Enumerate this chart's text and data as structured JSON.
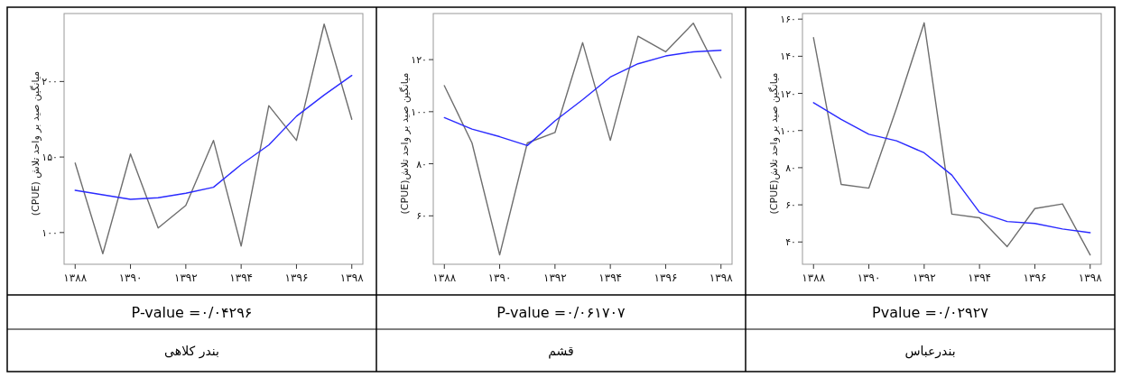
{
  "chart_data": [
    {
      "type": "line",
      "title": "بندر کلاهی",
      "ylabel": "میانگین صید بر واحد تلاش (CPUE)",
      "annotations": [
        "P-value =۰/۰۴۲۹۶"
      ],
      "x": [
        1388,
        1389,
        1390,
        1391,
        1392,
        1393,
        1394,
        1395,
        1396,
        1397,
        1398
      ],
      "series": [
        {
          "color": "#6e6e6e",
          "values": [
            146,
            86,
            152,
            103,
            118,
            161,
            91,
            184,
            161,
            238,
            175
          ]
        },
        {
          "color": "#2a2aff",
          "values": [
            128,
            125,
            122,
            123,
            126,
            130,
            145,
            158,
            177,
            191,
            204
          ]
        }
      ],
      "xlim": [
        1387.6,
        1398.4
      ],
      "xticks": [
        {
          "value": 1388,
          "label": "۱۳۸۸"
        },
        {
          "value": 1390,
          "label": "۱۳۹۰"
        },
        {
          "value": 1392,
          "label": "۱۳۹۲"
        },
        {
          "value": 1394,
          "label": "۱۳۹۴"
        },
        {
          "value": 1396,
          "label": "۱۳۹۶"
        },
        {
          "value": 1398,
          "label": "۱۳۹۸"
        }
      ],
      "ylim": [
        79,
        245
      ],
      "yticks": [
        {
          "value": 100,
          "label": "۱۰۰"
        },
        {
          "value": 150,
          "label": "۱۵۰"
        },
        {
          "value": 200,
          "label": "۲۰۰"
        }
      ]
    },
    {
      "type": "line",
      "title": "قشم",
      "ylabel": "میانگین صید بر واحد تلاش(CPUE)",
      "annotations": [
        "P-value =۰/۰۶۱۷۰۷"
      ],
      "x": [
        1388,
        1389,
        1390,
        1391,
        1392,
        1393,
        1394,
        1395,
        1396,
        1397,
        1398
      ],
      "series": [
        {
          "color": "#6e6e6e",
          "values": [
            110,
            88,
            45,
            88,
            92,
            126.5,
            89,
            129,
            123,
            134,
            113
          ]
        },
        {
          "color": "#2a2aff",
          "values": [
            97.7,
            93.3,
            90.4,
            87,
            96.5,
            104.6,
            113.3,
            118.4,
            121.4,
            123,
            123.6
          ]
        }
      ],
      "xlim": [
        1387.6,
        1398.4
      ],
      "xticks": [
        {
          "value": 1388,
          "label": "۱۳۸۸"
        },
        {
          "value": 1390,
          "label": "۱۳۹۰"
        },
        {
          "value": 1392,
          "label": "۱۳۹۲"
        },
        {
          "value": 1394,
          "label": "۱۳۹۴"
        },
        {
          "value": 1396,
          "label": "۱۳۹۶"
        },
        {
          "value": 1398,
          "label": "۱۳۹۸"
        }
      ],
      "ylim": [
        41.4,
        137.7
      ],
      "yticks": [
        {
          "value": 60,
          "label": "۶۰"
        },
        {
          "value": 80,
          "label": "۸۰"
        },
        {
          "value": 100,
          "label": "۱۰۰"
        },
        {
          "value": 120,
          "label": "۱۲۰"
        }
      ]
    },
    {
      "type": "line",
      "title": "بندرعباس",
      "ylabel": "میانگین صید بر واحد تلاش(CPUE)",
      "annotations": [
        "Pvalue =۰/۰۲۹۲۷"
      ],
      "x": [
        1388,
        1389,
        1390,
        1391,
        1392,
        1393,
        1394,
        1395,
        1396,
        1397,
        1398
      ],
      "series": [
        {
          "color": "#6e6e6e",
          "values": [
            150,
            71,
            69,
            112,
            158,
            55,
            53,
            37.5,
            58,
            60.5,
            33
          ]
        },
        {
          "color": "#2a2aff",
          "values": [
            115,
            106,
            98,
            94.5,
            88,
            76,
            56,
            51,
            50,
            47,
            45
          ]
        }
      ],
      "xlim": [
        1387.6,
        1398.4
      ],
      "xticks": [
        {
          "value": 1388,
          "label": "۱۳۸۸"
        },
        {
          "value": 1390,
          "label": "۱۳۹۰"
        },
        {
          "value": 1392,
          "label": "۱۳۹۲"
        },
        {
          "value": 1394,
          "label": "۱۳۹۴"
        },
        {
          "value": 1396,
          "label": "۱۳۹۶"
        },
        {
          "value": 1398,
          "label": "۱۳۹۸"
        }
      ],
      "ylim": [
        28,
        163
      ],
      "yticks": [
        {
          "value": 40,
          "label": "۴۰"
        },
        {
          "value": 60,
          "label": "۶۰"
        },
        {
          "value": 80,
          "label": "۸۰"
        },
        {
          "value": 100,
          "label": "۱۰۰"
        },
        {
          "value": 120,
          "label": "۱۲۰"
        },
        {
          "value": 140,
          "label": "۱۴۰"
        },
        {
          "value": 160,
          "label": "۱۶۰"
        }
      ]
    }
  ]
}
